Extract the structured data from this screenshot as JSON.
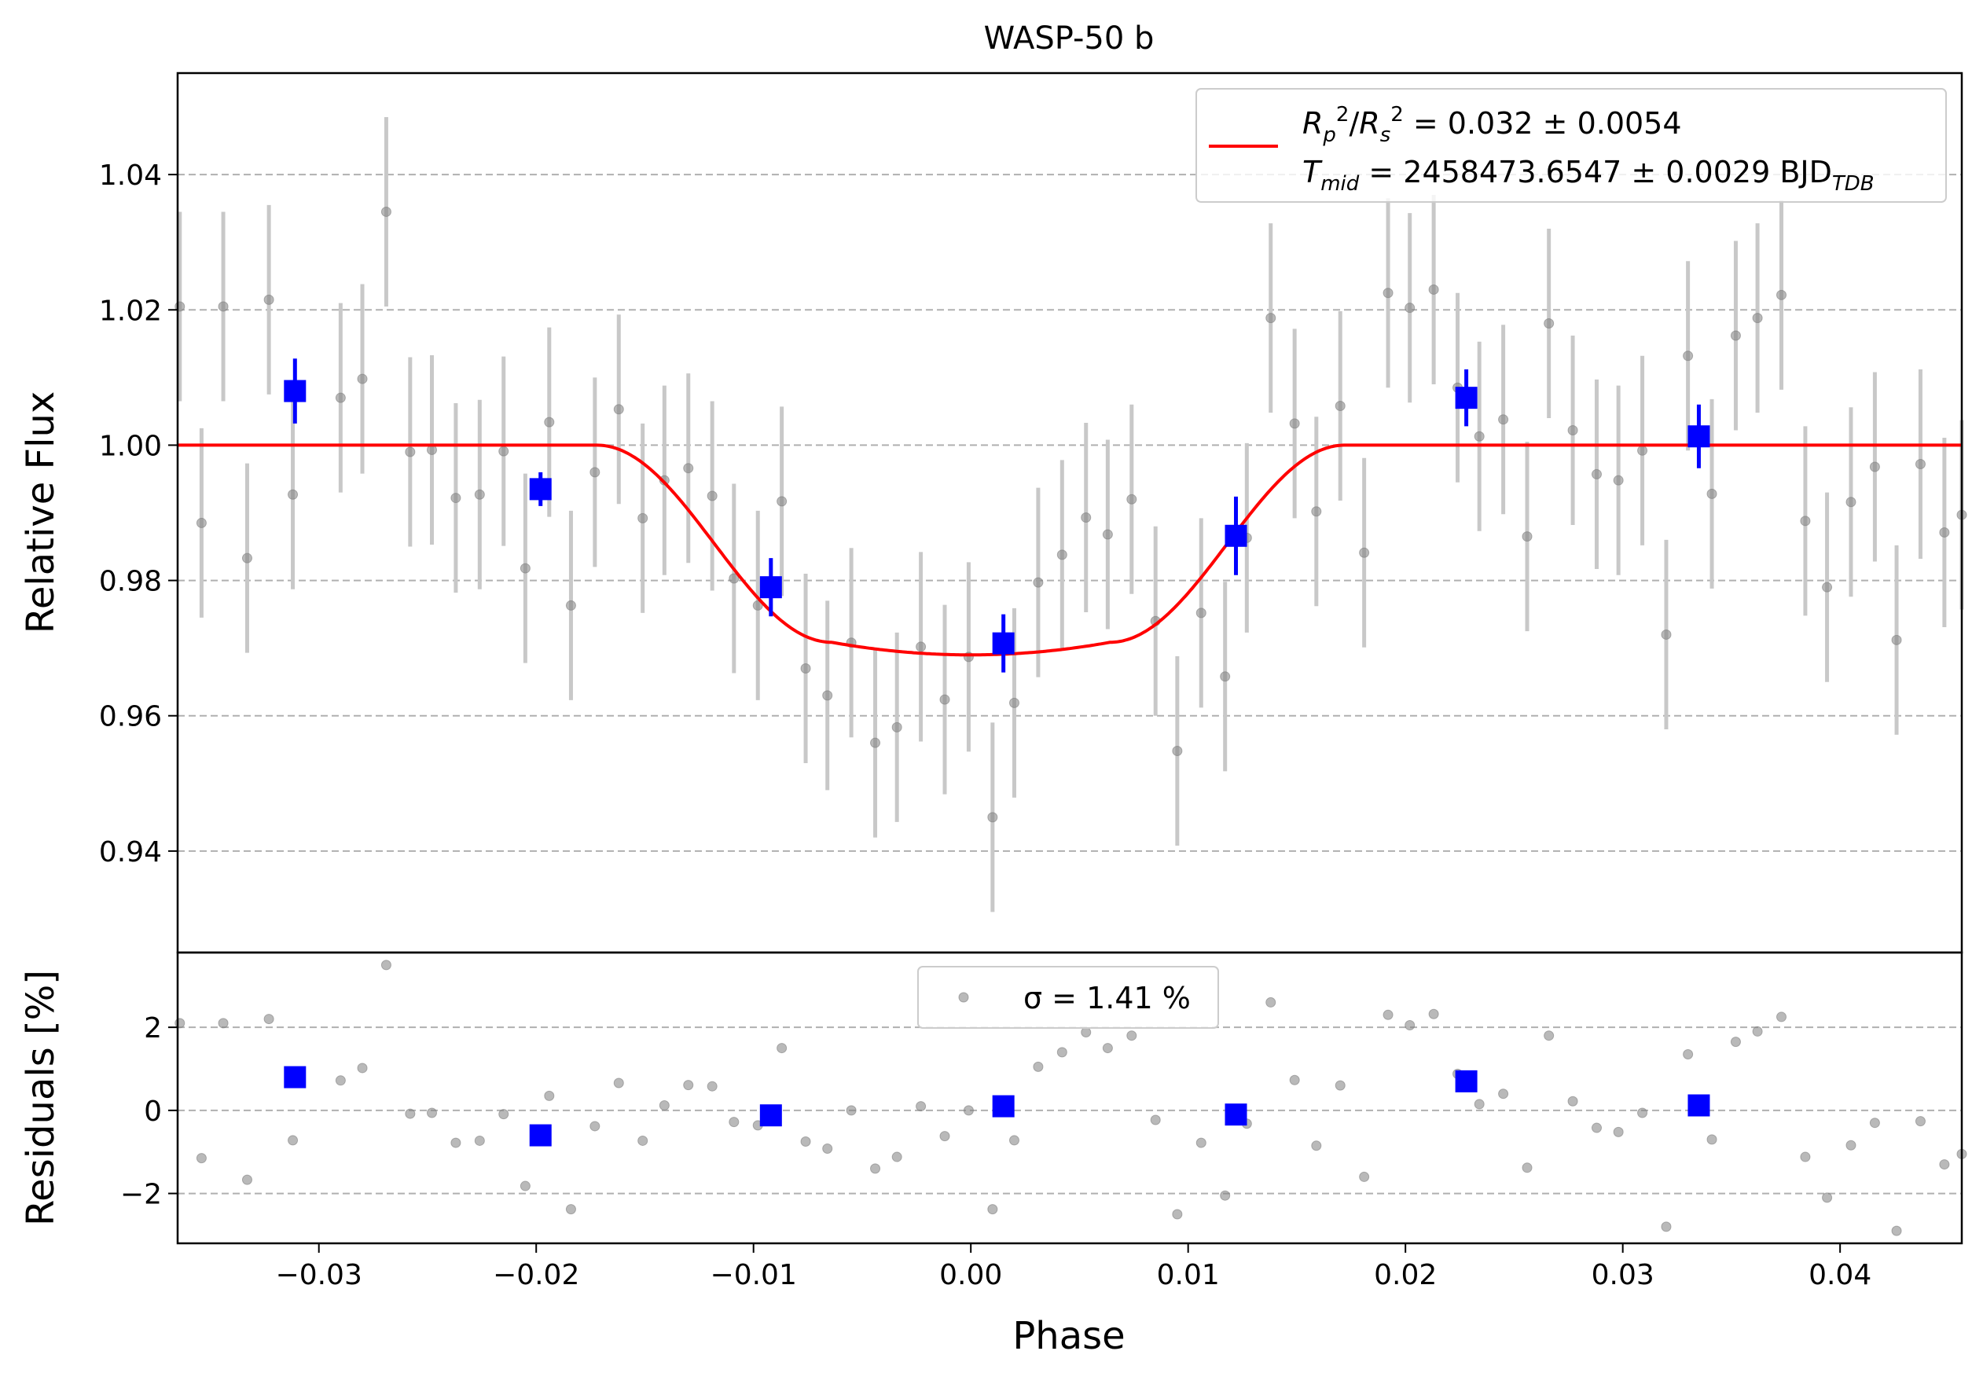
{
  "chart_data": {
    "type": "scatter",
    "title": "WASP-50 b",
    "xlabel": "Phase",
    "xlim": [
      -0.0365,
      0.0456
    ],
    "x_ticks": [
      -0.03,
      -0.02,
      -0.01,
      0.0,
      0.01,
      0.02,
      0.03,
      0.04
    ],
    "x_tick_labels": [
      "−0.03",
      "−0.02",
      "−0.01",
      "0.00",
      "0.01",
      "0.02",
      "0.03",
      "0.04"
    ],
    "top_panel": {
      "ylabel": "Relative Flux",
      "ylim": [
        0.925,
        1.055
      ],
      "y_ticks": [
        0.94,
        0.96,
        0.98,
        1.0,
        1.02,
        1.04
      ],
      "y_tick_labels": [
        "0.94",
        "0.96",
        "0.98",
        "1.00",
        "1.02",
        "1.04"
      ],
      "grid": "horizontal dashed",
      "legend": {
        "placement": "top-right",
        "line_label": "R_p^2/R_s^2 = 0.032 ± 0.0054",
        "line_label_2": "T_mid = 2458473.6547 ± 0.0029 BJD_TDB"
      },
      "series": [
        {
          "kind": "data",
          "color": "#808080",
          "error": 0.014,
          "points": [
            [
              -0.0364,
              1.0205
            ],
            [
              -0.0354,
              0.9885
            ],
            [
              -0.0344,
              1.0205
            ],
            [
              -0.0333,
              0.9833
            ],
            [
              -0.0323,
              1.0215
            ],
            [
              -0.0312,
              0.9927
            ],
            [
              -0.029,
              1.007
            ],
            [
              -0.028,
              1.0098
            ],
            [
              -0.0269,
              1.0345
            ],
            [
              -0.0258,
              0.999
            ],
            [
              -0.0248,
              0.9993
            ],
            [
              -0.0237,
              0.9922
            ],
            [
              -0.0226,
              0.9927
            ],
            [
              -0.0215,
              0.9991
            ],
            [
              -0.0205,
              0.9818
            ],
            [
              -0.0194,
              1.0034
            ],
            [
              -0.0184,
              0.9763
            ],
            [
              -0.0173,
              0.996
            ],
            [
              -0.0162,
              1.0053
            ],
            [
              -0.0151,
              0.9892
            ],
            [
              -0.0141,
              0.9948
            ],
            [
              -0.013,
              0.9966
            ],
            [
              -0.0119,
              0.9925
            ],
            [
              -0.0109,
              0.9803
            ],
            [
              -0.0098,
              0.9763
            ],
            [
              -0.0087,
              0.9917
            ],
            [
              -0.0076,
              0.967
            ],
            [
              -0.0066,
              0.963
            ],
            [
              -0.0055,
              0.9708
            ],
            [
              -0.0044,
              0.956
            ],
            [
              -0.0034,
              0.9583
            ],
            [
              -0.0023,
              0.9702
            ],
            [
              -0.0012,
              0.9624
            ],
            [
              -0.0001,
              0.9687
            ],
            [
              0.001,
              0.945
            ],
            [
              0.002,
              0.9619
            ],
            [
              0.0031,
              0.9797
            ],
            [
              0.0042,
              0.9838
            ],
            [
              0.0053,
              0.9893
            ],
            [
              0.0063,
              0.9868
            ],
            [
              0.0074,
              0.992
            ],
            [
              0.0085,
              0.974
            ],
            [
              0.0095,
              0.9548
            ],
            [
              0.0106,
              0.9752
            ],
            [
              0.0117,
              0.9658
            ],
            [
              0.0127,
              0.9863
            ],
            [
              0.0138,
              1.0188
            ],
            [
              0.0149,
              1.0032
            ],
            [
              0.0159,
              0.9902
            ],
            [
              0.017,
              1.0058
            ],
            [
              0.0181,
              0.9841
            ],
            [
              0.0192,
              1.0225
            ],
            [
              0.0202,
              1.0203
            ],
            [
              0.0213,
              1.023
            ],
            [
              0.0224,
              1.0085
            ],
            [
              0.0234,
              1.0013
            ],
            [
              0.0245,
              1.0038
            ],
            [
              0.0256,
              0.9865
            ],
            [
              0.0266,
              1.018
            ],
            [
              0.0277,
              1.0022
            ],
            [
              0.0288,
              0.9957
            ],
            [
              0.0298,
              0.9948
            ],
            [
              0.0309,
              0.9992
            ],
            [
              0.032,
              0.972
            ],
            [
              0.033,
              1.0132
            ],
            [
              0.0341,
              0.9928
            ],
            [
              0.0352,
              1.0162
            ],
            [
              0.0362,
              1.0188
            ],
            [
              0.0373,
              1.0222
            ],
            [
              0.0384,
              0.9888
            ],
            [
              0.0394,
              0.979
            ],
            [
              0.0405,
              0.9916
            ],
            [
              0.0416,
              0.9968
            ],
            [
              0.0426,
              0.9712
            ],
            [
              0.0437,
              0.9972
            ],
            [
              0.0448,
              0.9871
            ],
            [
              0.0456,
              0.9897
            ]
          ]
        },
        {
          "kind": "binned",
          "color": "#0000ff",
          "points": [
            [
              -0.0311,
              1.008,
              0.0048
            ],
            [
              -0.0198,
              0.9935,
              0.0025
            ],
            [
              -0.0092,
              0.979,
              0.0043
            ],
            [
              0.0015,
              0.9707,
              0.0043
            ],
            [
              0.0122,
              0.9866,
              0.0058
            ],
            [
              0.0228,
              1.007,
              0.0042
            ],
            [
              0.0335,
              1.0013,
              0.0047
            ]
          ]
        },
        {
          "kind": "model",
          "color": "#ff0000",
          "depth": 0.031,
          "t_contact_outer": 0.0172,
          "t_contact_inner": 0.0064
        }
      ]
    },
    "bottom_panel": {
      "ylabel": "Residuals [%]",
      "ylim": [
        -3.2,
        3.8
      ],
      "y_ticks": [
        -2,
        0,
        2
      ],
      "y_tick_labels": [
        "−2",
        "0",
        "2"
      ],
      "grid": "horizontal dashed",
      "legend": {
        "placement": "top-center",
        "label": "σ = 1.41 %"
      },
      "series": [
        {
          "kind": "residuals",
          "color": "#808080",
          "points": [
            [
              -0.0364,
              2.1
            ],
            [
              -0.0354,
              -1.15
            ],
            [
              -0.0344,
              2.1
            ],
            [
              -0.0333,
              -1.67
            ],
            [
              -0.0323,
              2.2
            ],
            [
              -0.0312,
              -0.72
            ],
            [
              -0.029,
              0.72
            ],
            [
              -0.028,
              1.02
            ],
            [
              -0.0269,
              3.5
            ],
            [
              -0.0258,
              -0.08
            ],
            [
              -0.0248,
              -0.06
            ],
            [
              -0.0237,
              -0.78
            ],
            [
              -0.0226,
              -0.73
            ],
            [
              -0.0215,
              -0.09
            ],
            [
              -0.0205,
              -1.82
            ],
            [
              -0.0194,
              0.35
            ],
            [
              -0.0184,
              -2.38
            ],
            [
              -0.0173,
              -0.38
            ],
            [
              -0.0162,
              0.66
            ],
            [
              -0.0151,
              -0.73
            ],
            [
              -0.0141,
              0.12
            ],
            [
              -0.013,
              0.61
            ],
            [
              -0.0119,
              0.58
            ],
            [
              -0.0109,
              -0.28
            ],
            [
              -0.0098,
              -0.36
            ],
            [
              -0.0087,
              1.5
            ],
            [
              -0.0076,
              -0.75
            ],
            [
              -0.0066,
              -0.92
            ],
            [
              -0.0055,
              0.0
            ],
            [
              -0.0044,
              -1.4
            ],
            [
              -0.0034,
              -1.12
            ],
            [
              -0.0023,
              0.1
            ],
            [
              -0.0012,
              -0.62
            ],
            [
              -0.0001,
              0.0
            ],
            [
              0.001,
              -2.38
            ],
            [
              0.002,
              -0.72
            ],
            [
              0.0031,
              1.05
            ],
            [
              0.0042,
              1.4
            ],
            [
              0.0053,
              1.88
            ],
            [
              0.0063,
              1.5
            ],
            [
              0.0074,
              1.8
            ],
            [
              0.0085,
              -0.23
            ],
            [
              0.0095,
              -2.5
            ],
            [
              0.0106,
              -0.78
            ],
            [
              0.0117,
              -2.05
            ],
            [
              0.0127,
              -0.32
            ],
            [
              0.0138,
              2.6
            ],
            [
              0.0149,
              0.73
            ],
            [
              0.0159,
              -0.85
            ],
            [
              0.017,
              0.6
            ],
            [
              0.0181,
              -1.6
            ],
            [
              0.0192,
              2.3
            ],
            [
              0.0202,
              2.05
            ],
            [
              0.0213,
              2.32
            ],
            [
              0.0224,
              0.88
            ],
            [
              0.0234,
              0.15
            ],
            [
              0.0245,
              0.4
            ],
            [
              0.0256,
              -1.38
            ],
            [
              0.0266,
              1.8
            ],
            [
              0.0277,
              0.22
            ],
            [
              0.0288,
              -0.42
            ],
            [
              0.0298,
              -0.52
            ],
            [
              0.0309,
              -0.06
            ],
            [
              0.032,
              -2.8
            ],
            [
              0.033,
              1.35
            ],
            [
              0.0341,
              -0.7
            ],
            [
              0.0352,
              1.65
            ],
            [
              0.0362,
              1.9
            ],
            [
              0.0373,
              2.25
            ],
            [
              0.0384,
              -1.12
            ],
            [
              0.0394,
              -2.1
            ],
            [
              0.0405,
              -0.84
            ],
            [
              0.0416,
              -0.3
            ],
            [
              0.0426,
              -2.9
            ],
            [
              0.0437,
              -0.26
            ],
            [
              0.0448,
              -1.3
            ],
            [
              0.0456,
              -1.05
            ]
          ]
        },
        {
          "kind": "binned_residuals",
          "color": "#0000ff",
          "points": [
            [
              -0.0311,
              0.8
            ],
            [
              -0.0198,
              -0.6
            ],
            [
              -0.0092,
              -0.12
            ],
            [
              0.0015,
              0.1
            ],
            [
              0.0122,
              -0.1
            ],
            [
              0.0228,
              0.7
            ],
            [
              0.0335,
              0.12
            ]
          ]
        }
      ]
    }
  }
}
